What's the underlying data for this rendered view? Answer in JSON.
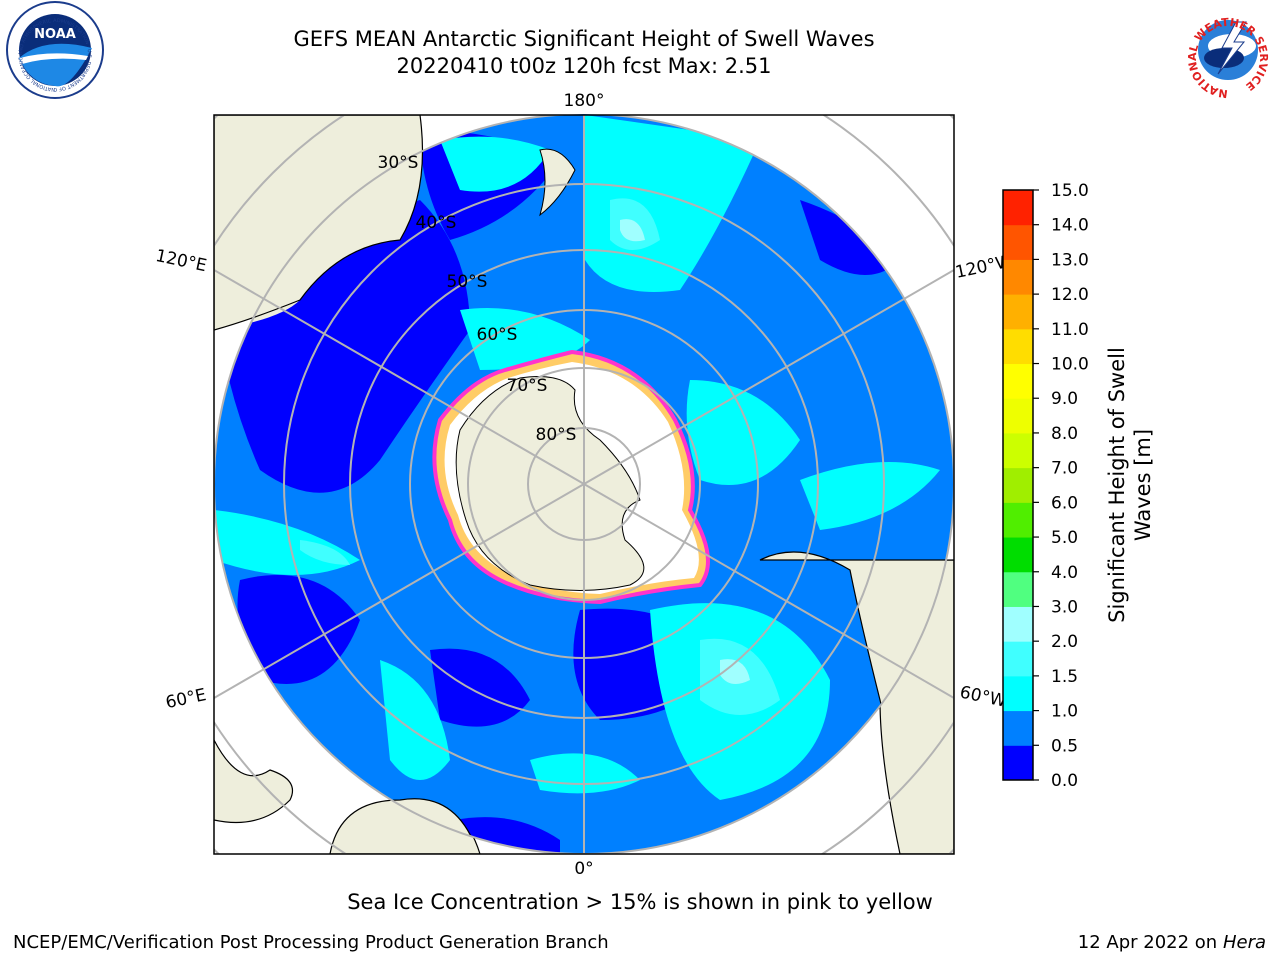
{
  "header": {
    "title_line1": "GEFS MEAN Antarctic Significant Height of Swell Waves",
    "title_line2": "20220410 t00z 120h fcst   Max: 2.51"
  },
  "logos": {
    "noaa_text": "NOAA",
    "noaa_ring_text": "NATIONAL OCEANIC AND ATMOSPHERIC ADMINISTRATION · U.S. DEPARTMENT OF COMMERCE",
    "nws_ring_text": "NATIONAL WEATHER SERVICE"
  },
  "map": {
    "longitude_labels": {
      "top": "180°",
      "bottom": "0°",
      "upper_left": "120°E",
      "upper_right": "120°W",
      "lower_left": "60°E",
      "lower_right": "60°W"
    },
    "latitude_labels": [
      "30°S",
      "40°S",
      "50°S",
      "60°S",
      "70°S",
      "80°S"
    ],
    "colors": {
      "land": "#eeeedc",
      "ice_shelf": "#ffffff",
      "sea_ice_edge": "#ff33cc",
      "sea_ice_inner": "#ffcc66",
      "graticule": "#b3b3b3"
    }
  },
  "colorbar": {
    "label_line1": "Significant Height of Swell",
    "label_line2": "Waves [m]",
    "ticks": [
      "0.0",
      "0.5",
      "1.0",
      "1.5",
      "2.0",
      "3.0",
      "4.0",
      "5.0",
      "6.0",
      "7.0",
      "8.0",
      "9.0",
      "10.0",
      "11.0",
      "12.0",
      "13.0",
      "14.0",
      "15.0"
    ],
    "colors": [
      "#0000ff",
      "#0080ff",
      "#00ffff",
      "#40ffff",
      "#a0ffff",
      "#50ff80",
      "#00dd00",
      "#50ee00",
      "#a0ee00",
      "#ccff00",
      "#eeff00",
      "#ffff00",
      "#ffdd00",
      "#ffb000",
      "#ff8800",
      "#ff5500",
      "#ff2200",
      "#ff0000"
    ]
  },
  "note": "Sea Ice Concentration > 15% is shown in pink to yellow",
  "footer": {
    "left": "NCEP/EMC/Verification Post Processing Product Generation Branch",
    "right_prefix": "12 Apr 2022 on ",
    "right_host": "Hera"
  }
}
